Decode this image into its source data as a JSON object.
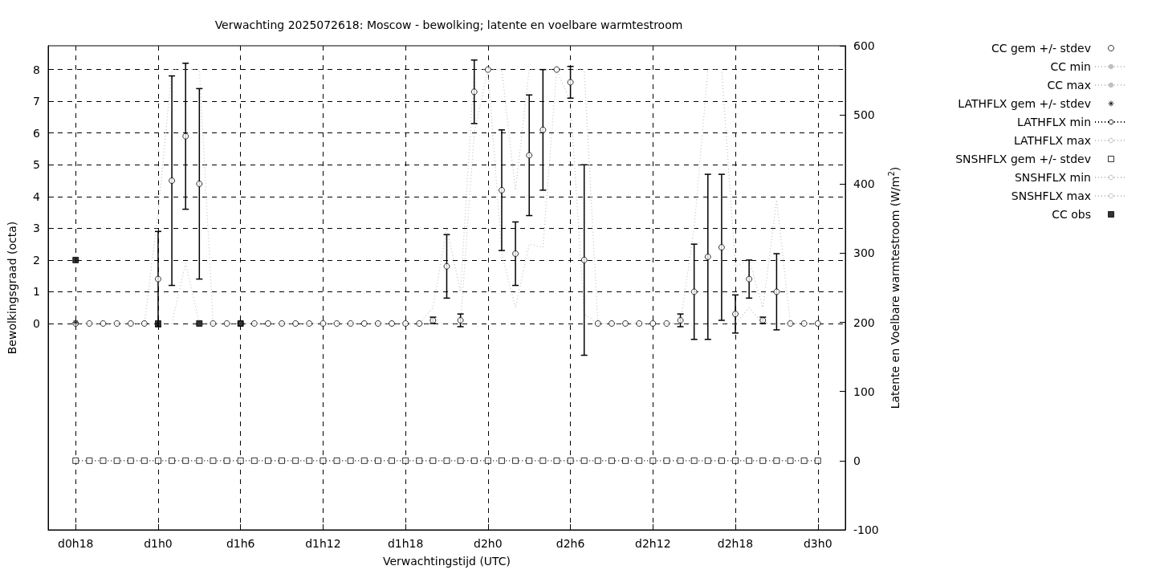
{
  "chart_data": {
    "type": "scatter",
    "title": "Verwachting 2025072618: Moscow - bewolking; latente en voelbare warmtestroom",
    "xlabel": "Verwachtingstijd (UTC)",
    "ylabel": "Bewolkingsgraad (octa)",
    "y2label": "Latente en Voelbare warmtestroom (W/m$^{2}$)",
    "categories": [
      null,
      null,
      "d0h18",
      null,
      null,
      null,
      null,
      null,
      "d1h0",
      null,
      null,
      null,
      null,
      null,
      "d1h6",
      null,
      null,
      null,
      null,
      null,
      "d1h12",
      null,
      null,
      null,
      null,
      null,
      "d1h18",
      null,
      null,
      null,
      null,
      null,
      "d2h0",
      null,
      null,
      null,
      null,
      null,
      "d2h6",
      null,
      null,
      null,
      null,
      null,
      "d2h12",
      null,
      null,
      null,
      null,
      null,
      "d2h18",
      null,
      null,
      null,
      null,
      null,
      "d3h0",
      null,
      null
    ],
    "ylim": [
      -6.5,
      8.75
    ],
    "yticks": [
      0,
      1,
      2,
      3,
      4,
      5,
      6,
      7,
      8
    ],
    "y2lim": [
      -100,
      600
    ],
    "y2ticks": [
      -100,
      0,
      100,
      200,
      300,
      400,
      500,
      600
    ],
    "grid": true,
    "legend": "top right",
    "series": [
      {
        "name": "CC gem +/- stdev",
        "marker": "circle",
        "color": "#000000",
        "values": [
          null,
          null,
          0,
          0,
          0,
          0,
          0,
          0,
          1.4,
          4.5,
          5.9,
          4.4,
          0,
          0,
          0,
          0,
          0,
          0,
          0,
          0,
          0,
          0,
          0,
          0,
          0,
          0,
          0,
          0,
          0.1,
          1.8,
          0.1,
          7.3,
          8,
          4.2,
          2.2,
          5.3,
          6.1,
          8,
          7.6,
          2.0,
          0,
          0,
          0,
          0,
          0,
          0,
          0.1,
          1.0,
          2.1,
          2.4,
          0.3,
          1.4,
          0.1,
          1.0,
          0,
          0,
          0,
          null,
          null
        ],
        "errors": [
          null,
          null,
          null,
          null,
          null,
          null,
          null,
          null,
          1.5,
          3.3,
          2.3,
          3.0,
          null,
          null,
          null,
          null,
          null,
          null,
          null,
          null,
          null,
          null,
          null,
          null,
          null,
          null,
          null,
          null,
          0.1,
          1.0,
          0.2,
          1.0,
          null,
          1.9,
          1.0,
          1.9,
          1.9,
          null,
          0.5,
          3.0,
          null,
          null,
          null,
          null,
          null,
          null,
          0.2,
          1.5,
          2.6,
          2.3,
          0.6,
          0.6,
          0.1,
          1.2,
          null,
          null,
          null,
          null,
          null
        ]
      },
      {
        "name": "CC min",
        "type": "line",
        "line_style": "dotted",
        "marker": "none",
        "color": "#c0c0c0",
        "values": [
          null,
          null,
          0,
          0,
          0,
          0,
          0,
          0,
          0,
          0,
          1.9,
          0,
          0,
          0,
          0,
          0,
          0,
          0,
          0,
          0,
          0,
          0,
          0,
          0,
          0,
          0,
          0,
          0,
          0,
          0,
          0,
          6,
          8,
          2.2,
          0.5,
          2.5,
          2.4,
          8,
          7,
          0.3,
          0,
          0,
          0,
          0,
          0,
          0,
          0,
          0,
          0,
          0,
          0,
          0.5,
          0,
          0,
          0,
          0,
          0,
          null,
          null
        ]
      },
      {
        "name": "CC max",
        "type": "line",
        "line_style": "dotted",
        "marker": "none",
        "color": "#c0c0c0",
        "values": [
          null,
          null,
          0,
          0,
          0,
          0,
          0,
          0,
          3.5,
          8,
          8,
          8,
          0,
          0,
          0,
          0,
          0,
          0,
          0,
          0,
          0,
          0,
          0,
          0,
          0,
          0,
          0,
          0,
          0.5,
          3,
          1,
          8,
          8,
          8,
          4.2,
          8,
          8,
          8,
          8,
          8,
          0,
          0,
          0,
          0,
          0,
          0,
          0,
          3,
          8,
          8,
          1.8,
          2,
          0.5,
          3.9,
          0,
          0,
          0,
          null,
          null
        ]
      },
      {
        "name": "LATHFLX gem +/- stdev",
        "marker": "cross",
        "color": "#000000",
        "axis": "y2",
        "values": [
          null,
          null,
          200,
          null,
          null,
          null,
          null,
          null,
          null,
          null,
          null,
          null,
          null,
          null,
          null,
          null,
          null,
          null,
          null,
          null,
          null,
          null,
          null,
          null,
          null,
          null,
          null,
          null,
          null,
          null,
          null,
          null,
          null,
          null,
          null,
          null,
          null,
          null,
          null,
          null,
          null,
          null,
          null,
          null,
          null,
          null,
          null,
          null,
          null,
          null,
          null,
          null,
          null,
          null,
          null,
          null,
          null,
          null,
          null
        ]
      },
      {
        "name": "LATHFLX min",
        "type": "line",
        "line_style": "dotted",
        "marker": "none",
        "color": "#000000",
        "axis": "y2",
        "values": [
          null,
          null,
          0,
          0,
          0,
          0,
          0,
          0,
          0,
          0,
          0,
          0,
          0,
          0,
          0,
          0,
          0,
          0,
          0,
          0,
          0,
          0,
          0,
          0,
          0,
          0,
          0,
          0,
          0,
          0,
          0,
          0,
          0,
          0,
          0,
          0,
          0,
          0,
          0,
          0,
          0,
          0,
          0,
          0,
          0,
          0,
          0,
          0,
          0,
          0,
          0,
          0,
          0,
          0,
          0,
          0,
          0,
          null,
          null
        ]
      },
      {
        "name": "LATHFLX max",
        "type": "line",
        "line_style": "dotted",
        "marker": "none",
        "color": "#c0c0c0",
        "axis": "y2",
        "values": [
          null,
          null,
          null,
          null,
          null,
          null,
          null,
          null,
          null,
          null,
          null,
          null,
          null,
          null,
          null,
          null,
          null,
          null,
          null,
          null,
          null,
          null,
          null,
          null,
          null,
          null,
          null,
          null,
          null,
          null,
          null,
          null,
          null,
          null,
          null,
          null,
          null,
          null,
          null,
          null,
          null,
          null,
          null,
          null,
          null,
          null,
          null,
          null,
          null,
          null,
          null,
          null,
          null,
          null,
          null,
          null,
          null,
          null,
          null
        ]
      },
      {
        "name": "SNSHFLX gem +/- stdev",
        "marker": "square",
        "color": "#000000",
        "axis": "y2",
        "values": [
          null,
          null,
          0,
          0,
          0,
          0,
          0,
          0,
          0,
          0,
          0,
          0,
          0,
          0,
          0,
          0,
          0,
          0,
          0,
          0,
          0,
          0,
          0,
          0,
          0,
          0,
          0,
          0,
          0,
          0,
          0,
          0,
          0,
          0,
          0,
          0,
          0,
          0,
          0,
          0,
          0,
          0,
          0,
          0,
          0,
          0,
          0,
          0,
          0,
          0,
          0,
          0,
          0,
          0,
          0,
          0,
          0,
          null,
          null
        ]
      },
      {
        "name": "SNSHFLX min",
        "type": "line",
        "line_style": "dotted",
        "marker": "none",
        "color": "#c0c0c0",
        "axis": "y2",
        "values": [
          null,
          null,
          null,
          null,
          null,
          null,
          null,
          null,
          null,
          null,
          null,
          null,
          null,
          null,
          null,
          null,
          null,
          null,
          null,
          null,
          null,
          null,
          null,
          null,
          null,
          null,
          null,
          null,
          null,
          null,
          null,
          null,
          null,
          null,
          null,
          null,
          null,
          null,
          null,
          null,
          null,
          null,
          null,
          null,
          null,
          null,
          null,
          null,
          null,
          null,
          null,
          null,
          null,
          null,
          null,
          null,
          null,
          null,
          null
        ]
      },
      {
        "name": "SNSHFLX max",
        "type": "line",
        "line_style": "dotted",
        "marker": "none",
        "color": "#c0c0c0",
        "axis": "y2",
        "values": [
          null,
          null,
          null,
          null,
          null,
          null,
          null,
          null,
          null,
          null,
          null,
          null,
          null,
          null,
          null,
          null,
          null,
          null,
          null,
          null,
          null,
          null,
          null,
          null,
          null,
          null,
          null,
          null,
          null,
          null,
          null,
          null,
          null,
          null,
          null,
          null,
          null,
          null,
          null,
          null,
          null,
          null,
          null,
          null,
          null,
          null,
          null,
          null,
          null,
          null,
          null,
          null,
          null,
          null,
          null,
          null,
          null,
          null,
          null
        ]
      },
      {
        "name": "CC obs",
        "marker": "square",
        "color": "#000000",
        "values": [
          null,
          null,
          2,
          null,
          null,
          null,
          null,
          null,
          0,
          null,
          null,
          0,
          null,
          null,
          0,
          null,
          null,
          null,
          null,
          null,
          null,
          null,
          null,
          null,
          null,
          null,
          null,
          null,
          null,
          null,
          null,
          null,
          null,
          null,
          null,
          null,
          null,
          null,
          null,
          null,
          null,
          null,
          null,
          null,
          null,
          null,
          null,
          null,
          null,
          null,
          null,
          null,
          null,
          null,
          null,
          null,
          null,
          null,
          null
        ]
      }
    ]
  }
}
